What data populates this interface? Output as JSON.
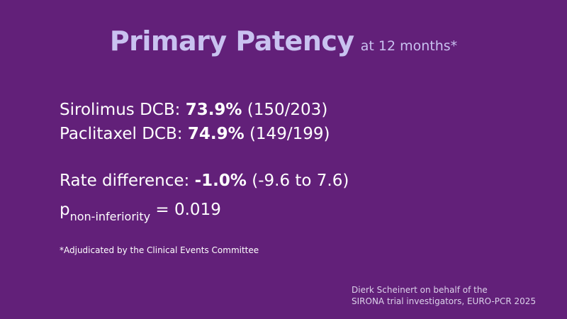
{
  "title": {
    "main": "Primary Patency",
    "sub": "at 12 months*"
  },
  "results": [
    {
      "label": "Sirolimus DCB:",
      "value": "73.9%",
      "detail": "(150/203)"
    },
    {
      "label": "Paclitaxel DCB:",
      "value": "74.9%",
      "detail": "(149/199)"
    }
  ],
  "rate_difference": {
    "label": "Rate difference:",
    "value": "-1.0%",
    "detail": "(-9.6 to 7.6)"
  },
  "p_value": {
    "symbol": "p",
    "subscript": "non-inferiority",
    "text": "= 0.019"
  },
  "footnote": "*Adjudicated by the Clinical Events Committee",
  "credit": {
    "line1": "Dierk Scheinert on behalf of the",
    "line2": "SIRONA trial investigators, EURO-PCR 2025"
  },
  "colors": {
    "background": "#622079",
    "title": "#c9c2f0",
    "text": "#ffffff"
  }
}
